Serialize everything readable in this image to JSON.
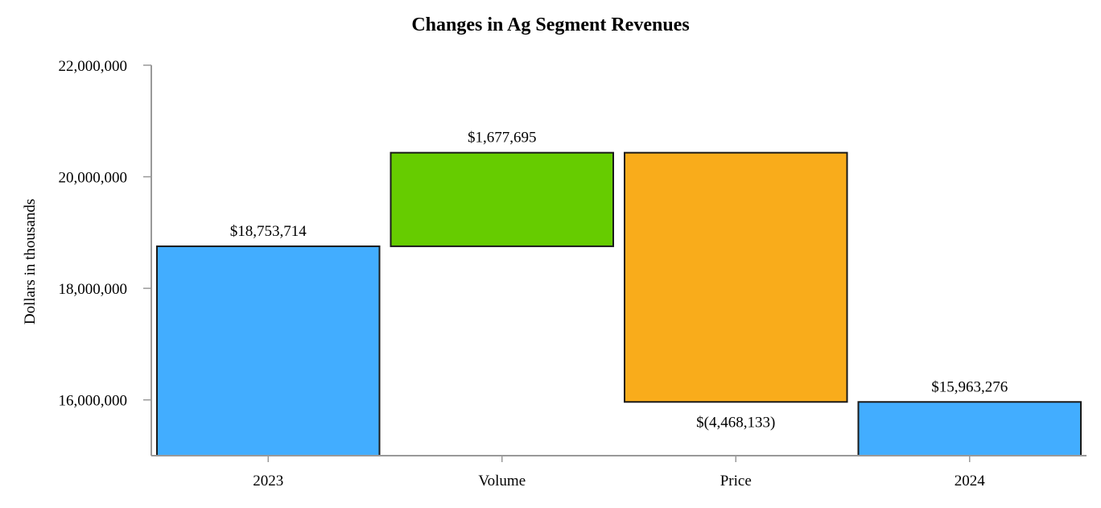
{
  "chart_data": {
    "type": "waterfall",
    "title": "Changes in Ag Segment Revenues",
    "xlabel": "",
    "ylabel": "Dollars in thousands",
    "ylim": [
      15000000,
      22000000
    ],
    "y_ticks": [
      16000000,
      18000000,
      20000000,
      22000000
    ],
    "y_tick_labels": [
      "16,000,000",
      "18,000,000",
      "20,000,000",
      "22,000,000"
    ],
    "categories": [
      "2023",
      "Volume",
      "Price",
      "2024"
    ],
    "steps": [
      {
        "category": "2023",
        "kind": "total",
        "value": 18753714,
        "label": "$18,753,714",
        "color": "#42adff"
      },
      {
        "category": "Volume",
        "kind": "increase",
        "value": 1677695,
        "label": "$1,677,695",
        "color": "#66cc00"
      },
      {
        "category": "Price",
        "kind": "decrease",
        "value": -4468133,
        "label": "$(4,468,133)",
        "color": "#f9ac1b"
      },
      {
        "category": "2024",
        "kind": "total",
        "value": 15963276,
        "label": "$15,963,276",
        "color": "#42adff"
      }
    ],
    "grid": false,
    "legend": "none"
  }
}
